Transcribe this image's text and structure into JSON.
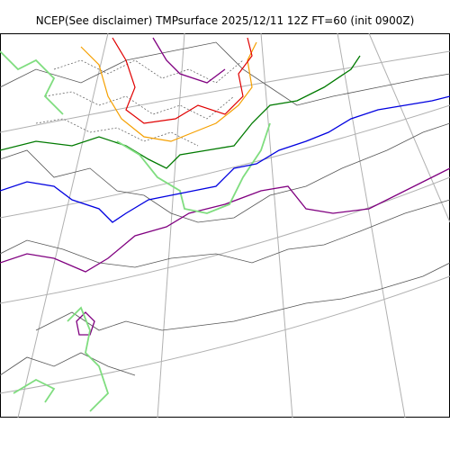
{
  "title": "NCEP(See disclaimer) TMPsurface 2025/12/11 12Z FT=60 (init 0900Z)",
  "map": {
    "background": "#ffffff",
    "graticule_color": "#b0b0b0",
    "coastline_color": "#444444",
    "contour_colors": {
      "dotted_cold": "#555555",
      "orange": "#f5a000",
      "red": "#e00000",
      "purple": "#800080",
      "dark_green": "#007a00",
      "light_green": "#7fdd7f",
      "blue": "#0000e0",
      "gray": "#555555"
    }
  }
}
